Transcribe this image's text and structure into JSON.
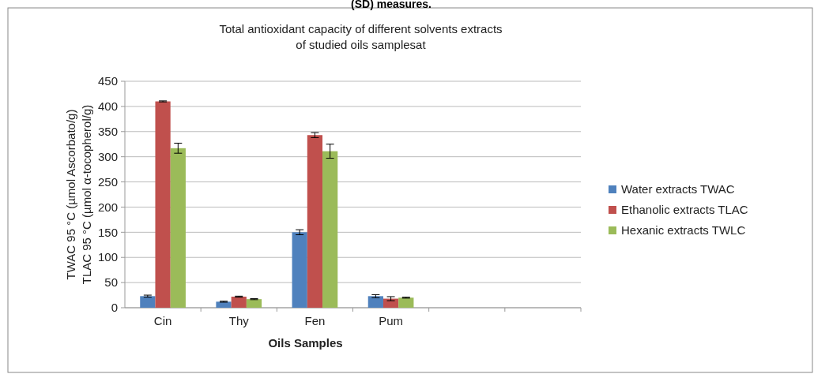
{
  "chart_data": {
    "type": "bar",
    "title": "Total antioxidant capacity of different solvents extracts\nof studied oils samplesat",
    "annotations": [
      "(SD) measures."
    ],
    "xlabel": "Oils Samples",
    "ylabel": "TWAC 95 °C (µmol Ascorbato/g)\nTLAC 95 °C (µmol α-tocopherol/g)",
    "categories": [
      "Cin",
      "Thy",
      "Fen",
      "Pum",
      null,
      null
    ],
    "series": [
      {
        "name": "Water extracts TWAC",
        "color": "#4f81bd",
        "values": [
          23,
          12,
          150,
          23,
          null,
          null
        ],
        "errors": [
          2,
          1,
          5,
          3,
          null,
          null
        ]
      },
      {
        "name": "Ethanolic extracts TLAC",
        "color": "#c0504d",
        "values": [
          410,
          22,
          343,
          18,
          null,
          null
        ],
        "errors": [
          1,
          1,
          5,
          4,
          null,
          null
        ]
      },
      {
        "name": "Hexanic extracts TWLC",
        "color": "#9bbb59",
        "values": [
          317,
          17,
          311,
          20,
          null,
          null
        ],
        "errors": [
          10,
          1,
          14,
          1,
          null,
          null
        ]
      }
    ],
    "ylim": [
      0,
      450
    ],
    "yticks": [
      0,
      50,
      100,
      150,
      200,
      250,
      300,
      350,
      400,
      450
    ],
    "grid": "y",
    "legend": "right"
  }
}
